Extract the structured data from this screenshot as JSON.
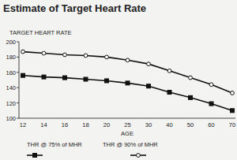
{
  "chart_data": {
    "type": "line",
    "title": "Estimate of Target Heart Rate",
    "y_label": "TARGET HEART RATE",
    "x_label": "AGE",
    "categories": [
      "12",
      "14",
      "16",
      "18",
      "20",
      "25",
      "30",
      "40",
      "50",
      "60",
      "70"
    ],
    "series": [
      {
        "name": "THR @ 75% of MHR",
        "color": "#111111",
        "marker": "square",
        "line_style": "solid",
        "values": [
          156,
          154,
          153,
          151,
          149,
          146,
          142,
          134,
          127,
          119,
          110
        ]
      },
      {
        "name": "THR @ 90% of MHR",
        "color": "#111111",
        "marker": "circle",
        "line_style": "solid",
        "values": [
          187,
          185,
          183,
          182,
          180,
          176,
          171,
          162,
          153,
          144,
          133
        ]
      }
    ],
    "ylim": [
      100,
      200
    ],
    "yticks": [
      100,
      120,
      140,
      160,
      180,
      200
    ],
    "grid": false,
    "legend": "bottom"
  }
}
